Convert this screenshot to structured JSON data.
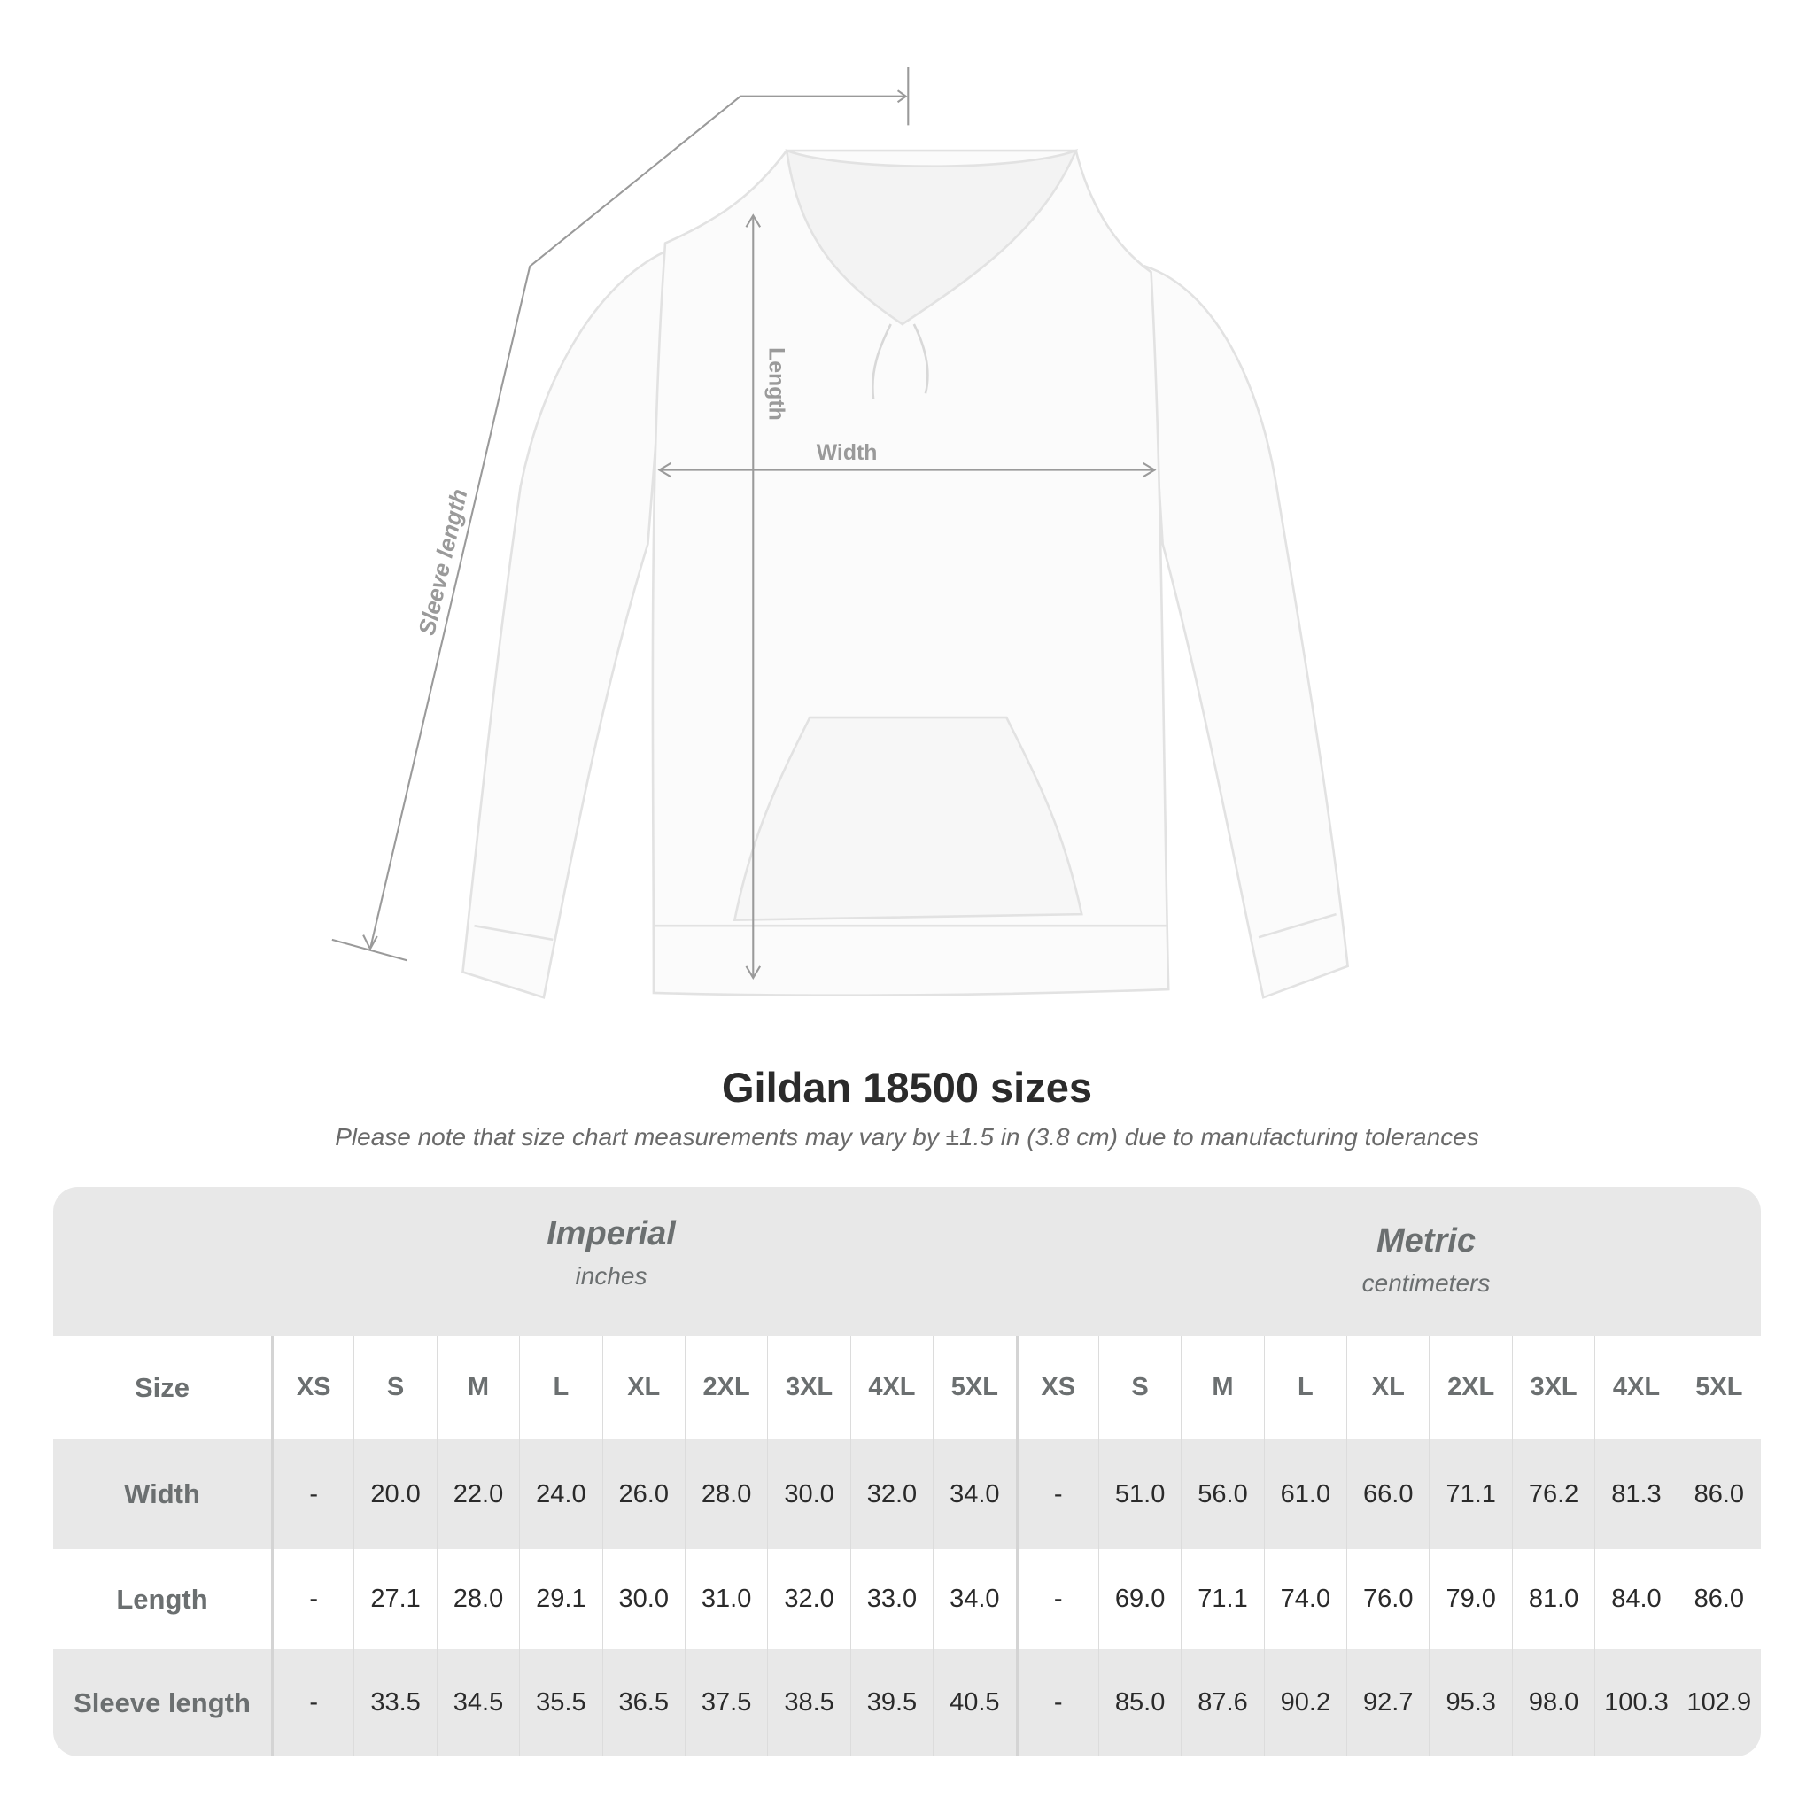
{
  "diagram": {
    "labels": {
      "length": "Length",
      "width": "Width",
      "sleeve": "Sleeve length"
    }
  },
  "title": "Gildan 18500 sizes",
  "note": "Please note that size chart measurements may vary by ±1.5 in (3.8 cm) due to manufacturing tolerances",
  "table": {
    "imperial": {
      "name": "Imperial",
      "unit": "inches"
    },
    "metric": {
      "name": "Metric",
      "unit": "centimeters"
    },
    "size_label": "Size",
    "sizes": [
      "XS",
      "S",
      "M",
      "L",
      "XL",
      "2XL",
      "3XL",
      "4XL",
      "5XL"
    ],
    "rows": [
      {
        "label": "Width",
        "imperial": [
          "-",
          "20.0",
          "22.0",
          "24.0",
          "26.0",
          "28.0",
          "30.0",
          "32.0",
          "34.0"
        ],
        "metric": [
          "-",
          "51.0",
          "56.0",
          "61.0",
          "66.0",
          "71.1",
          "76.2",
          "81.3",
          "86.0"
        ]
      },
      {
        "label": "Length",
        "imperial": [
          "-",
          "27.1",
          "28.0",
          "29.1",
          "30.0",
          "31.0",
          "32.0",
          "33.0",
          "34.0"
        ],
        "metric": [
          "-",
          "69.0",
          "71.1",
          "74.0",
          "76.0",
          "79.0",
          "81.0",
          "84.0",
          "86.0"
        ]
      },
      {
        "label": "Sleeve length",
        "imperial": [
          "-",
          "33.5",
          "34.5",
          "35.5",
          "36.5",
          "37.5",
          "38.5",
          "39.5",
          "40.5"
        ],
        "metric": [
          "-",
          "85.0",
          "87.6",
          "90.2",
          "92.7",
          "95.3",
          "98.0",
          "100.3",
          "102.9"
        ]
      }
    ]
  },
  "colors": {
    "header_bg": "#e8e8e8",
    "label_text": "#6b6f70",
    "measure_line": "#9a9a9a"
  }
}
